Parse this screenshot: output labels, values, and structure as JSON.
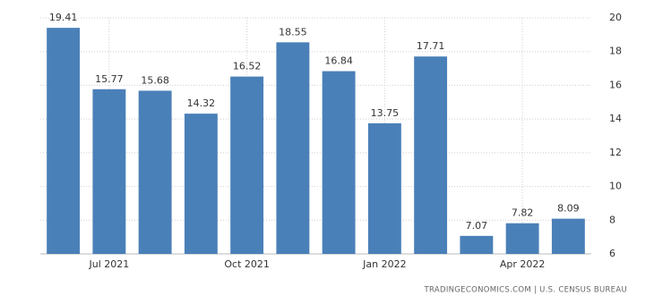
{
  "chart_data": {
    "type": "bar",
    "categories": [
      null,
      "Jul 2021",
      null,
      null,
      "Oct 2021",
      null,
      null,
      "Jan 2022",
      null,
      null,
      "Apr 2022",
      null
    ],
    "values": [
      19.41,
      15.77,
      15.68,
      14.32,
      16.52,
      18.55,
      16.84,
      13.75,
      17.71,
      7.07,
      7.82,
      8.09
    ],
    "color": "#4a80b8",
    "ylim": [
      6,
      20
    ],
    "yticks": [
      6,
      8,
      10,
      12,
      14,
      16,
      18,
      20
    ],
    "grid": true,
    "source": "TRADINGECONOMICS.COM | U.S. CENSUS BUREAU"
  }
}
